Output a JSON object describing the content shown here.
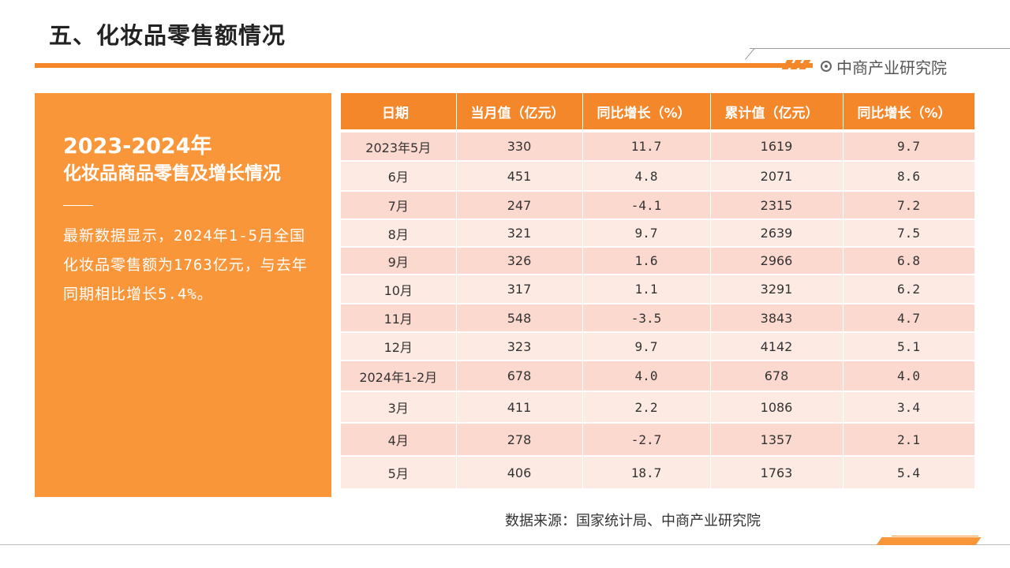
{
  "header": {
    "title": "五、化妆品零售额情况",
    "brand": "中商产业研究院"
  },
  "panel": {
    "year": "2023-2024年",
    "subtitle": "化妆品商品零售及增长情况",
    "body": "最新数据显示，2024年1-5月全国化妆品零售额为1763亿元，与去年同期相比增长5.4%。"
  },
  "table": {
    "headers": [
      "日期",
      "当月值（亿元）",
      "同比增长（%）",
      "累计值（亿元）",
      "同比增长（%）"
    ],
    "rows": [
      [
        "2023年5月",
        "330",
        "11.7",
        "1619",
        "9.7"
      ],
      [
        "6月",
        "451",
        "4.8",
        "2071",
        "8.6"
      ],
      [
        "7月",
        "247",
        "-4.1",
        "2315",
        "7.2"
      ],
      [
        "8月",
        "321",
        "9.7",
        "2639",
        "7.5"
      ],
      [
        "9月",
        "326",
        "1.6",
        "2966",
        "6.8"
      ],
      [
        "10月",
        "317",
        "1.1",
        "3291",
        "6.2"
      ],
      [
        "11月",
        "548",
        "-3.5",
        "3843",
        "4.7"
      ],
      [
        "12月",
        "323",
        "9.7",
        "4142",
        "5.1"
      ],
      [
        "2024年1-2月",
        "678",
        "4.0",
        "678",
        "4.0"
      ],
      [
        "3月",
        "411",
        "2.2",
        "1086",
        "3.4"
      ],
      [
        "4月",
        "278",
        "-2.7",
        "1357",
        "2.1"
      ],
      [
        "5月",
        "406",
        "18.7",
        "1763",
        "5.4"
      ]
    ]
  },
  "footer": {
    "source": "数据来源：国家统计局、中商产业研究院"
  },
  "colors": {
    "accent": "#f5872b",
    "panel": "#f9963a",
    "row_odd": "#fbd9ce",
    "row_even": "#fdeae3"
  }
}
